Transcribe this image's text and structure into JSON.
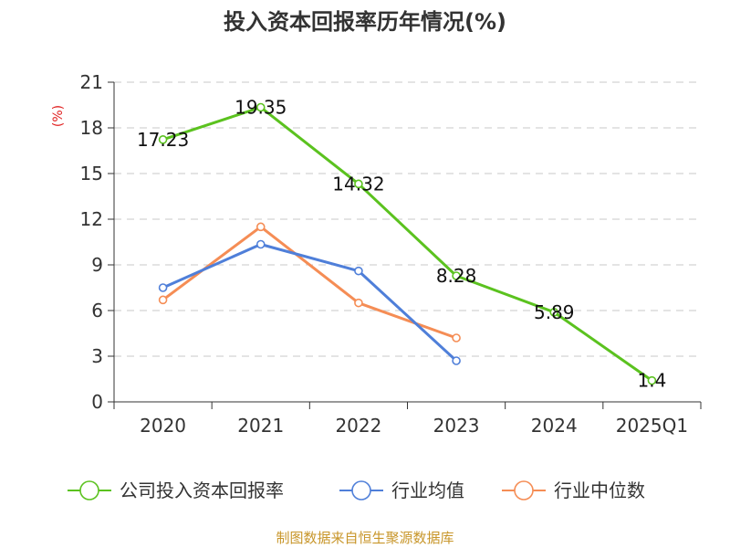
{
  "chart_data": {
    "type": "line",
    "title": "投入资本回报率历年情况(%)",
    "ylabel": "(%)",
    "categories": [
      "2020",
      "2021",
      "2022",
      "2023",
      "2024",
      "2025Q1"
    ],
    "y_ticks": [
      "0",
      "3",
      "6",
      "9",
      "12",
      "15",
      "18",
      "21"
    ],
    "ylim": [
      0,
      21
    ],
    "grid": true,
    "legend_position": "bottom",
    "series": [
      {
        "name": "公司投入资本回报率",
        "color": "#5bc21f",
        "values": [
          17.23,
          19.35,
          14.32,
          8.28,
          5.89,
          1.4
        ],
        "data_labels": [
          "17.23",
          "19.35",
          "14.32",
          "8.28",
          "5.89",
          "1.4"
        ]
      },
      {
        "name": "行业均值",
        "color": "#4f7fd9",
        "values": [
          7.5,
          10.35,
          8.6,
          2.7,
          null,
          null
        ]
      },
      {
        "name": "行业中位数",
        "color": "#f58d55",
        "values": [
          6.7,
          11.5,
          6.5,
          4.2,
          null,
          null
        ]
      }
    ]
  },
  "source": "制图数据来自恒生聚源数据库"
}
